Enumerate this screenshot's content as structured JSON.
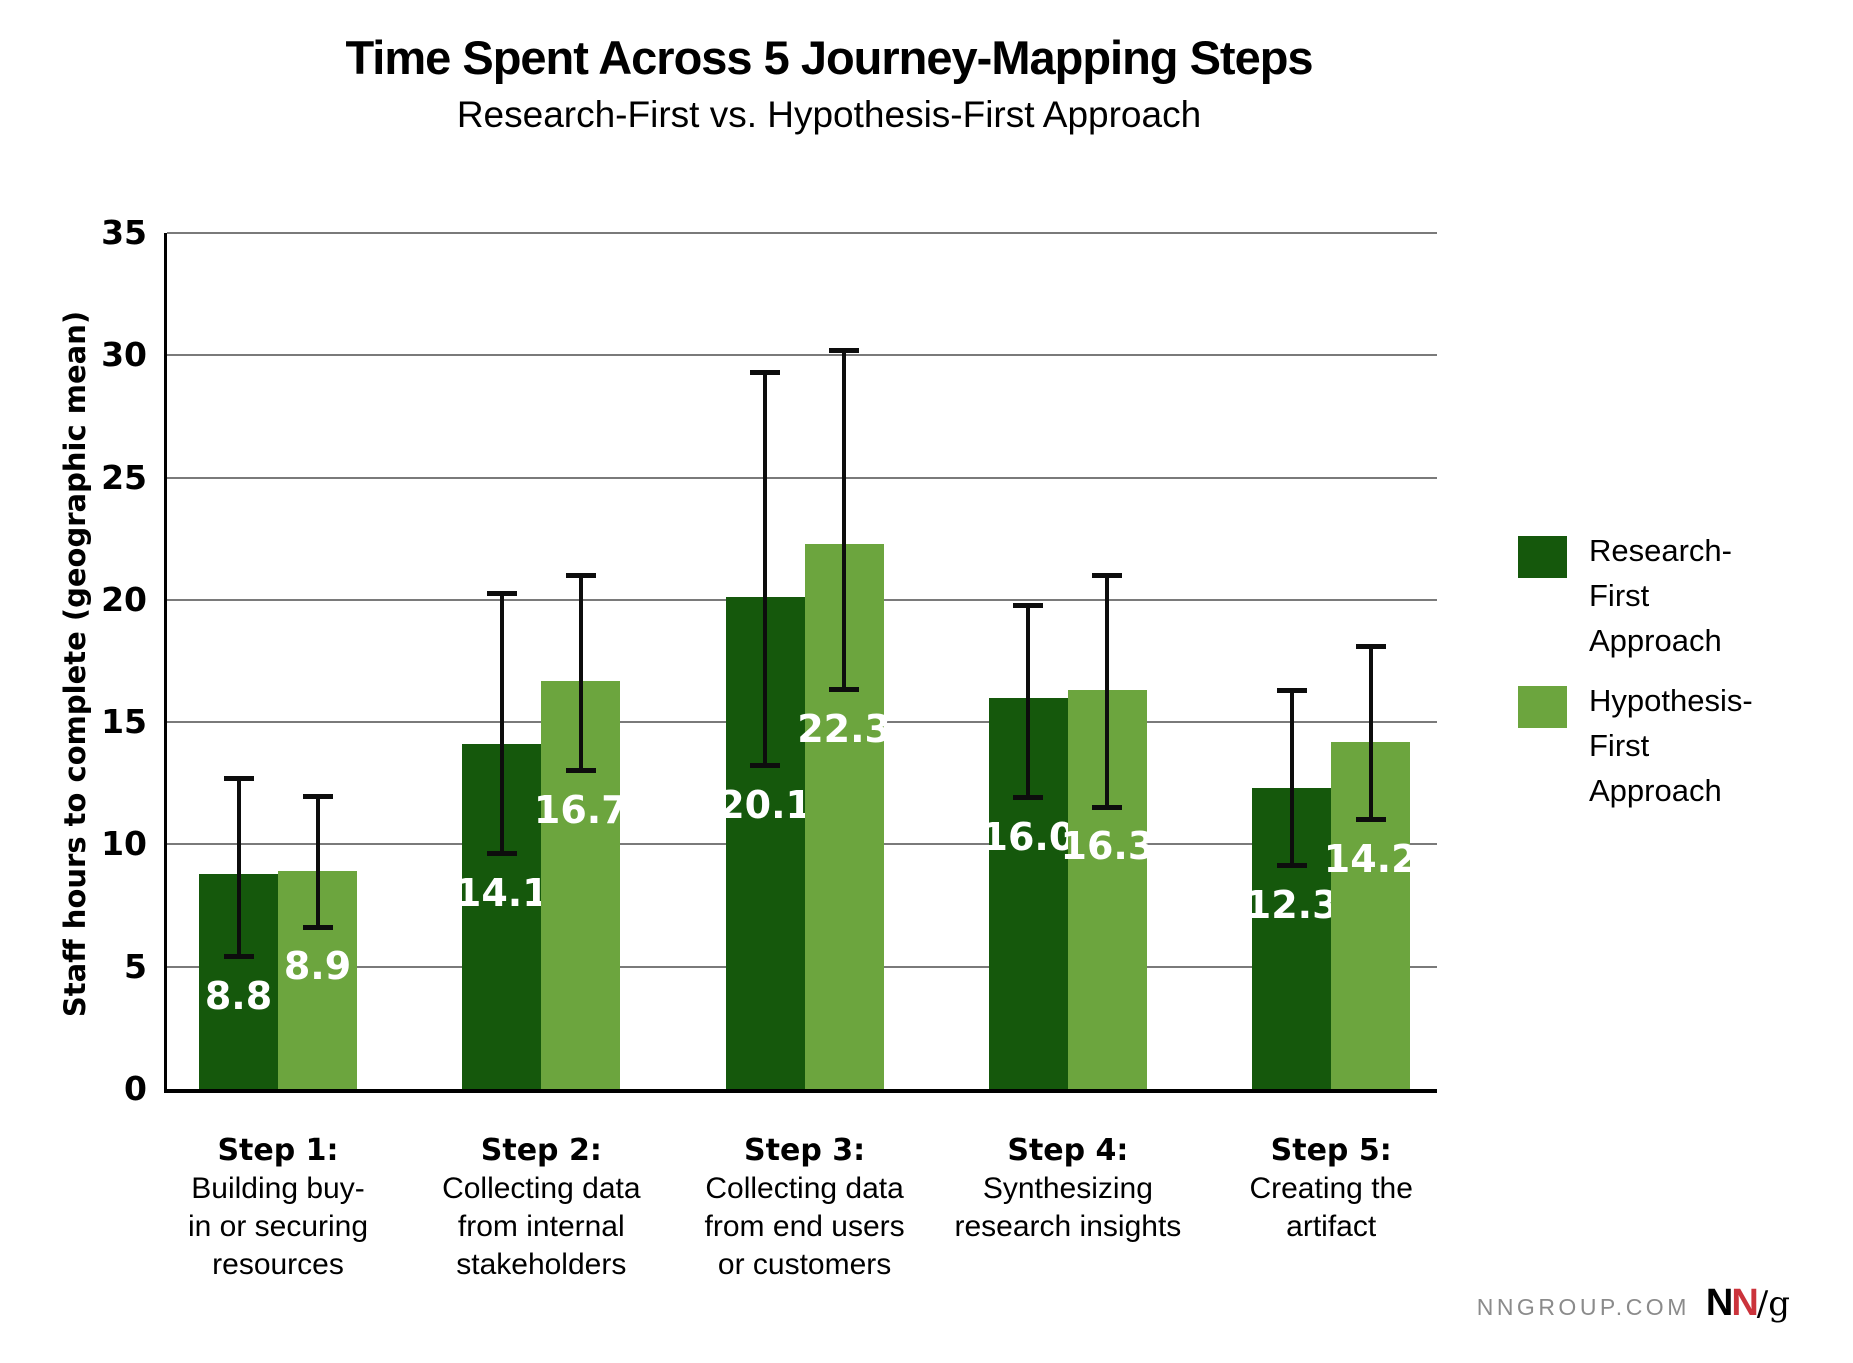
{
  "page": {
    "footer": {
      "site": "NNGROUP.COM",
      "logo_n1": "N",
      "logo_n2": "N",
      "logo_slash_g": "/g"
    }
  },
  "legend": {
    "items": [
      {
        "name": "Research-First Approach",
        "line1": "Research-First",
        "line2": "Approach",
        "color": "#15580c"
      },
      {
        "name": "Hypothesis-First Approach",
        "line1": "Hypothesis-First",
        "line2": "Approach",
        "color": "#6ca53e"
      }
    ]
  },
  "chart_data": {
    "type": "bar",
    "title": "Time Spent Across 5 Journey-Mapping Steps",
    "subtitle": "Research-First vs. Hypothesis-First Approach",
    "ylabel": "Staff hours to complete (geographic mean)",
    "xlabel": "",
    "ylim": [
      0,
      35
    ],
    "yticks": [
      0,
      5,
      10,
      15,
      20,
      25,
      30,
      35
    ],
    "grid": "horizontal",
    "legend_position": "right",
    "error_bars": true,
    "categories": [
      {
        "lines": [
          "Step 1:",
          "Building buy-",
          "in or securing",
          "resources"
        ]
      },
      {
        "lines": [
          "Step 2:",
          "Collecting data",
          "from internal",
          "stakeholders"
        ]
      },
      {
        "lines": [
          "Step 3:",
          "Collecting data",
          "from end users",
          "or customers"
        ]
      },
      {
        "lines": [
          "Step 4:",
          "Synthesizing",
          "research insights"
        ]
      },
      {
        "lines": [
          "Step 5:",
          "Creating the",
          "artifact"
        ]
      }
    ],
    "series": [
      {
        "name": "Research-First Approach",
        "color": "#15580c",
        "values": [
          8.8,
          14.1,
          20.1,
          16.0,
          12.3
        ],
        "error_low": [
          5.4,
          9.6,
          13.2,
          11.9,
          9.1
        ],
        "error_high": [
          12.7,
          20.3,
          29.3,
          19.8,
          16.3
        ]
      },
      {
        "name": "Hypothesis-First Approach",
        "color": "#6ca53e",
        "values": [
          8.9,
          16.7,
          22.3,
          16.3,
          14.2
        ],
        "error_low": [
          6.6,
          13.0,
          16.3,
          11.5,
          11.0
        ],
        "error_high": [
          12.0,
          21.0,
          30.2,
          21.0,
          18.1
        ]
      }
    ]
  }
}
